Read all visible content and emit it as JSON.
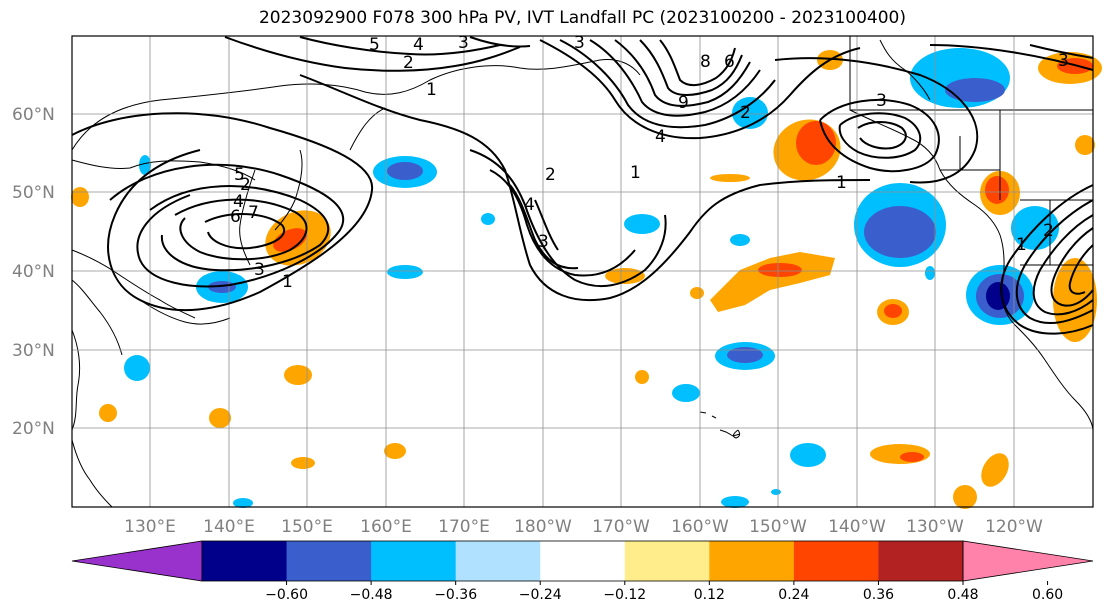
{
  "title": "2023092900 F078 300 hPa PV, IVT Landfall PC (2023100200 - 2023100400)",
  "lat_labels": [
    "60°N",
    "50°N",
    "40°N",
    "30°N",
    "20°N"
  ],
  "lon_labels": [
    "130°E",
    "140°E",
    "150°E",
    "160°E",
    "170°E",
    "180°W",
    "170°W",
    "160°W",
    "150°W",
    "140°W",
    "130°W",
    "120°W"
  ],
  "colorbar": {
    "labels": [
      "−0.60",
      "−0.48",
      "−0.36",
      "−0.24",
      "−0.12",
      "0.12",
      "0.24",
      "0.36",
      "0.48",
      "0.60"
    ],
    "colors": [
      "#9932cc",
      "#00008b",
      "#3a5fcd",
      "#00bfff",
      "#b0e2ff",
      "#ffffff",
      "#ffec8b",
      "#ffa500",
      "#ff4500",
      "#b22222",
      "#ff82ab"
    ]
  },
  "contour_labels": [
    "5",
    "4",
    "3",
    "2",
    "1",
    "3",
    "2",
    "1",
    "4",
    "5",
    "6",
    "7",
    "8",
    "9",
    "3",
    "4",
    "2",
    "3",
    "1",
    "2",
    "3",
    "4",
    "5",
    "6",
    "1",
    "3",
    "2",
    "1"
  ]
}
